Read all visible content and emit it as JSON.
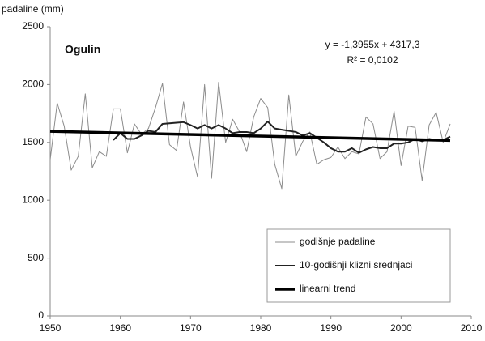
{
  "chart_data": {
    "type": "line",
    "title": "Ogulin",
    "ylabel": "padaline (mm)",
    "equation": "y = -1,3955x + 4317,3",
    "r_squared": "R² = 0,0102",
    "x": [
      1950,
      1951,
      1952,
      1953,
      1954,
      1955,
      1956,
      1957,
      1958,
      1959,
      1960,
      1961,
      1962,
      1963,
      1964,
      1965,
      1966,
      1967,
      1968,
      1969,
      1970,
      1971,
      1972,
      1973,
      1974,
      1975,
      1976,
      1977,
      1978,
      1979,
      1980,
      1981,
      1982,
      1983,
      1984,
      1985,
      1986,
      1987,
      1988,
      1989,
      1990,
      1991,
      1992,
      1993,
      1994,
      1995,
      1996,
      1997,
      1998,
      1999,
      2000,
      2001,
      2002,
      2003,
      2004,
      2005,
      2006,
      2007
    ],
    "series": [
      {
        "name": "godišnje padaline",
        "color": "#8c8c8c",
        "width": 1,
        "values": [
          1350,
          1840,
          1640,
          1260,
          1380,
          1920,
          1280,
          1420,
          1380,
          1790,
          1790,
          1410,
          1660,
          1570,
          1620,
          1800,
          2010,
          1480,
          1430,
          1850,
          1460,
          1200,
          2000,
          1190,
          2020,
          1500,
          1700,
          1590,
          1420,
          1720,
          1880,
          1800,
          1310,
          1100,
          1910,
          1380,
          1510,
          1590,
          1310,
          1350,
          1370,
          1460,
          1360,
          1420,
          1400,
          1720,
          1660,
          1360,
          1420,
          1770,
          1300,
          1640,
          1630,
          1170,
          1650,
          1760,
          1500,
          1660
        ]
      },
      {
        "name": "10-godišnji klizni srednjaci",
        "color": "#222222",
        "width": 2,
        "values": [
          null,
          null,
          null,
          null,
          null,
          null,
          null,
          null,
          null,
          1520,
          1580,
          1530,
          1530,
          1560,
          1600,
          1590,
          1660,
          1665,
          1670,
          1675,
          1650,
          1620,
          1650,
          1620,
          1650,
          1620,
          1580,
          1590,
          1590,
          1580,
          1620,
          1680,
          1620,
          1610,
          1600,
          1590,
          1560,
          1580,
          1540,
          1500,
          1450,
          1420,
          1420,
          1450,
          1410,
          1440,
          1460,
          1450,
          1450,
          1490,
          1490,
          1500,
          1530,
          1510,
          1530,
          1520,
          1520,
          1550
        ]
      },
      {
        "name": "linearni trend",
        "color": "#000000",
        "width": 3.5,
        "x": [
          1950,
          2007
        ],
        "values": [
          1596,
          1517
        ]
      }
    ],
    "xlim": [
      1950,
      2010
    ],
    "xticks": [
      1950,
      1960,
      1970,
      1980,
      1990,
      2000,
      2010
    ],
    "ylim": [
      0,
      2500
    ],
    "yticks": [
      0,
      500,
      1000,
      1500,
      2000,
      2500
    ]
  }
}
